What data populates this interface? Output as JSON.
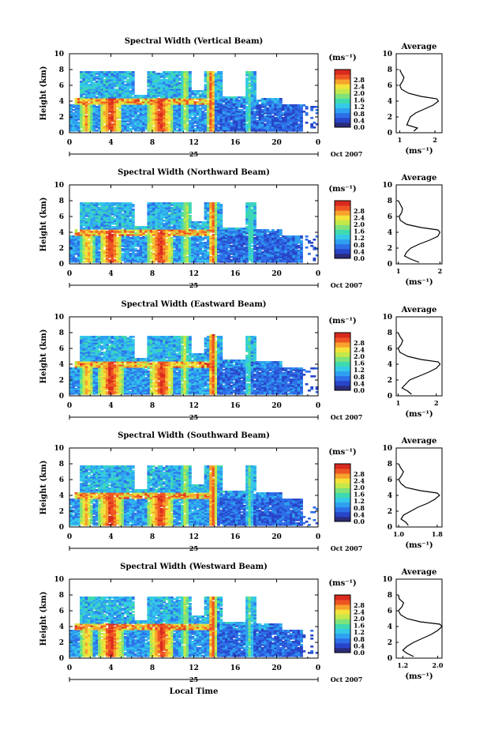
{
  "figure": {
    "shared_xlabel": "Local Time",
    "colorbar_unit_label": "(ms⁻¹)",
    "colorbar_ticks": [
      "0.0",
      "0.4",
      "0.8",
      "1.2",
      "1.6",
      "2.0",
      "2.4",
      "2.8"
    ],
    "day_label": "25",
    "date_label": "Oct 2007",
    "average_title": "Average",
    "average_xlabel": "(ms⁻¹)",
    "colormap": [
      "#2b2b7a",
      "#2845c8",
      "#2e6fe8",
      "#2fa0f0",
      "#35c9e8",
      "#3fd9b0",
      "#7fe27a",
      "#c4e84a",
      "#f3e23a",
      "#f7a22c",
      "#ee5524",
      "#d92a1e"
    ]
  },
  "chart_data": [
    {
      "type": "heatmap",
      "title": "Spectral Width (Vertical Beam)",
      "ylabel": "Height (km)",
      "x_ticks": [
        "0",
        "4",
        "8",
        "12",
        "16",
        "20",
        "0"
      ],
      "y_ticks": [
        "0",
        "2",
        "4",
        "6",
        "8",
        "10"
      ],
      "xlim": [
        0,
        24
      ],
      "ylim": [
        0,
        10
      ],
      "color_range": [
        0.0,
        2.8
      ],
      "upper_layer_top_km": 7.9,
      "convective_columns": [
        {
          "center_h": 1.6,
          "width_h": 1.2,
          "value": 2.4
        },
        {
          "center_h": 4.0,
          "width_h": 2.2,
          "value": 2.8
        },
        {
          "center_h": 8.8,
          "width_h": 2.4,
          "value": 2.8
        },
        {
          "center_h": 11.2,
          "width_h": 0.8,
          "value": 2.0
        },
        {
          "center_h": 13.7,
          "width_h": 0.7,
          "value": 2.8
        },
        {
          "center_h": 17.3,
          "width_h": 0.6,
          "value": 1.6
        }
      ],
      "average_profile": {
        "x_ticks": [
          "1",
          "2"
        ],
        "xlim": [
          0.9,
          2.2
        ],
        "height_km": [
          0.2,
          0.6,
          1.0,
          1.5,
          2.0,
          2.5,
          3.0,
          3.5,
          4.0,
          4.3,
          4.6,
          5.0,
          5.5,
          6.0,
          6.5,
          7.0,
          7.5,
          8.0
        ],
        "value": [
          1.4,
          1.5,
          1.2,
          1.25,
          1.3,
          1.45,
          1.7,
          1.95,
          2.1,
          2.05,
          1.6,
          1.25,
          1.05,
          1.0,
          1.08,
          1.12,
          1.05,
          1.0
        ]
      }
    },
    {
      "type": "heatmap",
      "title": "Spectral Width (Northward Beam)",
      "ylabel": "Height (km)",
      "x_ticks": [
        "0",
        "4",
        "8",
        "12",
        "16",
        "20",
        "0"
      ],
      "y_ticks": [
        "0",
        "2",
        "4",
        "6",
        "8",
        "10"
      ],
      "xlim": [
        0,
        24
      ],
      "ylim": [
        0,
        10
      ],
      "color_range": [
        0.0,
        2.8
      ],
      "upper_layer_top_km": 7.8,
      "convective_columns": [
        {
          "center_h": 1.8,
          "width_h": 1.4,
          "value": 2.4
        },
        {
          "center_h": 4.0,
          "width_h": 2.2,
          "value": 2.8
        },
        {
          "center_h": 8.8,
          "width_h": 2.4,
          "value": 2.8
        },
        {
          "center_h": 11.3,
          "width_h": 0.9,
          "value": 2.0
        },
        {
          "center_h": 13.8,
          "width_h": 0.7,
          "value": 2.8
        },
        {
          "center_h": 17.5,
          "width_h": 0.7,
          "value": 1.6
        }
      ],
      "average_profile": {
        "x_ticks": [
          "1",
          "2"
        ],
        "xlim": [
          0.95,
          2.05
        ],
        "height_km": [
          0.2,
          0.6,
          1.0,
          1.5,
          2.0,
          2.5,
          3.0,
          3.5,
          4.0,
          4.3,
          4.6,
          5.0,
          5.5,
          6.0,
          6.5,
          7.0,
          7.5,
          8.0
        ],
        "value": [
          1.5,
          1.3,
          1.15,
          1.2,
          1.3,
          1.5,
          1.75,
          1.95,
          2.0,
          1.95,
          1.55,
          1.2,
          1.05,
          1.02,
          1.08,
          1.1,
          1.05,
          1.0
        ]
      }
    },
    {
      "type": "heatmap",
      "title": "Spectral Width (Eastward Beam)",
      "ylabel": "Height (km)",
      "x_ticks": [
        "0",
        "4",
        "8",
        "12",
        "16",
        "20",
        "0"
      ],
      "y_ticks": [
        "0",
        "2",
        "4",
        "6",
        "8",
        "10"
      ],
      "xlim": [
        0,
        24
      ],
      "ylim": [
        0,
        10
      ],
      "color_range": [
        0.0,
        2.8
      ],
      "upper_layer_top_km": 7.7,
      "convective_columns": [
        {
          "center_h": 1.7,
          "width_h": 1.3,
          "value": 2.4
        },
        {
          "center_h": 4.0,
          "width_h": 2.3,
          "value": 2.8
        },
        {
          "center_h": 8.9,
          "width_h": 2.4,
          "value": 2.8
        },
        {
          "center_h": 11.1,
          "width_h": 0.8,
          "value": 2.0
        },
        {
          "center_h": 13.8,
          "width_h": 0.8,
          "value": 2.8
        },
        {
          "center_h": 17.3,
          "width_h": 0.6,
          "value": 1.6
        }
      ],
      "average_profile": {
        "x_ticks": [
          "1",
          "2"
        ],
        "xlim": [
          0.95,
          2.15
        ],
        "height_km": [
          0.2,
          0.6,
          1.0,
          1.5,
          2.0,
          2.5,
          3.0,
          3.5,
          4.0,
          4.3,
          4.6,
          5.0,
          5.5,
          6.0,
          6.5,
          7.0,
          7.5,
          8.0
        ],
        "value": [
          1.35,
          1.25,
          1.1,
          1.2,
          1.3,
          1.55,
          1.8,
          2.0,
          2.1,
          2.05,
          1.6,
          1.25,
          1.05,
          1.0,
          1.08,
          1.12,
          1.05,
          1.0
        ]
      }
    },
    {
      "type": "heatmap",
      "title": "Spectral Width (Southward Beam)",
      "ylabel": "Height (km)",
      "x_ticks": [
        "0",
        "4",
        "8",
        "12",
        "16",
        "20",
        "0"
      ],
      "y_ticks": [
        "0",
        "2",
        "4",
        "6",
        "8",
        "10"
      ],
      "xlim": [
        0,
        24
      ],
      "ylim": [
        0,
        10
      ],
      "color_range": [
        0.0,
        2.8
      ],
      "upper_layer_top_km": 7.9,
      "convective_columns": [
        {
          "center_h": 1.6,
          "width_h": 1.3,
          "value": 2.4
        },
        {
          "center_h": 4.0,
          "width_h": 2.3,
          "value": 2.8
        },
        {
          "center_h": 8.8,
          "width_h": 2.4,
          "value": 2.8
        },
        {
          "center_h": 11.2,
          "width_h": 0.8,
          "value": 2.0
        },
        {
          "center_h": 13.8,
          "width_h": 0.8,
          "value": 2.8
        },
        {
          "center_h": 17.4,
          "width_h": 0.6,
          "value": 1.6
        }
      ],
      "average_profile": {
        "x_ticks": [
          "1.0",
          "1.8"
        ],
        "xlim": [
          0.95,
          1.9
        ],
        "height_km": [
          0.2,
          0.6,
          1.0,
          1.5,
          2.0,
          2.5,
          3.0,
          3.5,
          4.0,
          4.3,
          4.6,
          5.0,
          5.5,
          6.0,
          6.5,
          7.0,
          7.5,
          8.0
        ],
        "value": [
          1.2,
          1.15,
          1.05,
          1.1,
          1.25,
          1.4,
          1.6,
          1.75,
          1.85,
          1.8,
          1.45,
          1.15,
          1.05,
          1.0,
          1.06,
          1.1,
          1.04,
          1.0
        ]
      }
    },
    {
      "type": "heatmap",
      "title": "Spectral Width (Westward Beam)",
      "ylabel": "Height (km)",
      "x_ticks": [
        "0",
        "4",
        "8",
        "12",
        "16",
        "20",
        "0"
      ],
      "y_ticks": [
        "0",
        "2",
        "4",
        "6",
        "8",
        "10"
      ],
      "xlim": [
        0,
        24
      ],
      "ylim": [
        0,
        10
      ],
      "color_range": [
        0.0,
        2.8
      ],
      "upper_layer_top_km": 7.8,
      "convective_columns": [
        {
          "center_h": 1.7,
          "width_h": 1.3,
          "value": 2.4
        },
        {
          "center_h": 4.0,
          "width_h": 2.3,
          "value": 2.8
        },
        {
          "center_h": 8.9,
          "width_h": 2.4,
          "value": 2.8
        },
        {
          "center_h": 11.2,
          "width_h": 0.8,
          "value": 2.0
        },
        {
          "center_h": 13.8,
          "width_h": 0.8,
          "value": 2.8
        },
        {
          "center_h": 17.4,
          "width_h": 0.6,
          "value": 1.6
        }
      ],
      "average_profile": {
        "x_ticks": [
          "1.2",
          "2.0"
        ],
        "xlim": [
          1.05,
          2.1
        ],
        "height_km": [
          0.2,
          0.6,
          1.0,
          1.5,
          2.0,
          2.5,
          3.0,
          3.5,
          4.0,
          4.3,
          4.6,
          5.0,
          5.5,
          6.0,
          6.5,
          7.0,
          7.5,
          8.0
        ],
        "value": [
          1.45,
          1.3,
          1.2,
          1.3,
          1.45,
          1.65,
          1.85,
          2.0,
          2.1,
          2.05,
          1.6,
          1.3,
          1.15,
          1.1,
          1.18,
          1.22,
          1.12,
          1.1
        ]
      }
    }
  ]
}
